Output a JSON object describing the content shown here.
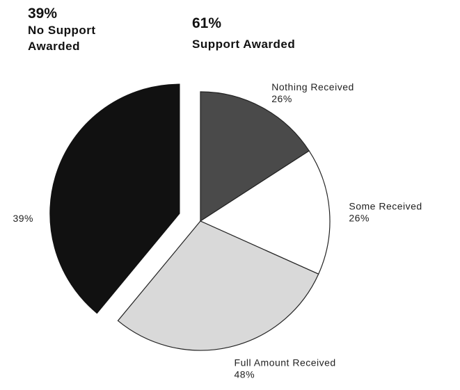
{
  "chart_data": {
    "type": "pie",
    "slices": [
      {
        "name": "No Support Awarded",
        "value": 39,
        "value_label": "39%",
        "color": "#111111",
        "exploded": true
      },
      {
        "name": "Support Awarded",
        "value": 61,
        "value_label": "61%",
        "parts": [
          {
            "name": "Nothing Received",
            "value": 26,
            "value_label": "26%",
            "color": "#4a4a4a"
          },
          {
            "name": "Some Received",
            "value": 26,
            "value_label": "26%",
            "color": "#ffffff"
          },
          {
            "name": "Full Amount Received",
            "value": 48,
            "value_label": "48%",
            "color": "#d9d9d9"
          }
        ]
      }
    ]
  }
}
